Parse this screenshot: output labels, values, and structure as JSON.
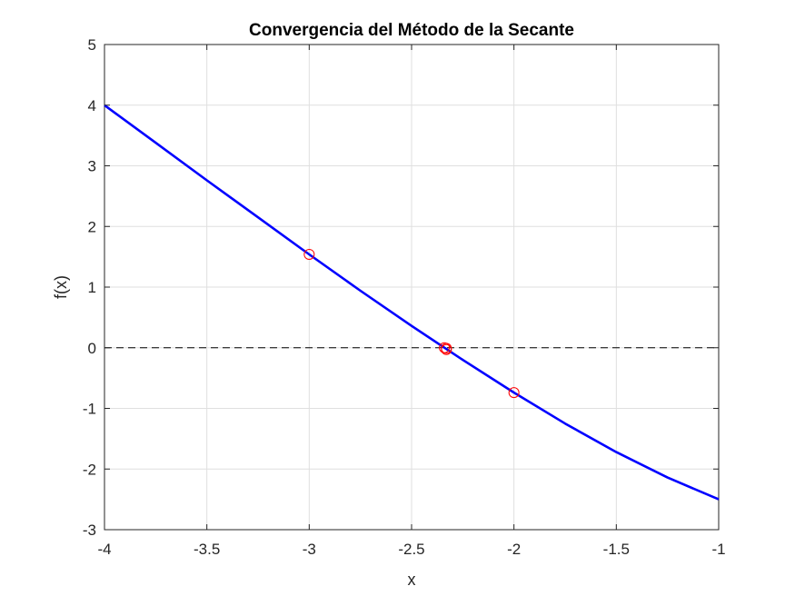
{
  "chart_data": {
    "type": "line",
    "title": "Convergencia del Método de la Secante",
    "xlabel": "x",
    "ylabel": "f(x)",
    "xlim": [
      -4,
      -1
    ],
    "ylim": [
      -3,
      5
    ],
    "grid": true,
    "xticks": [
      -4,
      -3.5,
      -3,
      -2.5,
      -2,
      -1.5,
      -1
    ],
    "yticks": [
      -3,
      -2,
      -1,
      0,
      1,
      2,
      3,
      4,
      5
    ],
    "xtick_labels": [
      "-4",
      "-3.5",
      "-3",
      "-2.5",
      "-2",
      "-1.5",
      "-1"
    ],
    "ytick_labels": [
      "-3",
      "-2",
      "-1",
      "0",
      "1",
      "2",
      "3",
      "4",
      "5"
    ],
    "series": [
      {
        "kind": "line",
        "color": "#0000ff",
        "x": [
          -4.0,
          -3.75,
          -3.5,
          -3.25,
          -3.0,
          -2.75,
          -2.5,
          -2.25,
          -2.0,
          -1.75,
          -1.5,
          -1.25,
          -1.0
        ],
        "y": [
          4.0,
          3.38,
          2.76,
          2.15,
          1.54,
          0.94,
          0.36,
          -0.2,
          -0.74,
          -1.25,
          -1.72,
          -2.14,
          -2.5
        ]
      },
      {
        "kind": "markers",
        "marker": "circle",
        "color": "#ff0000",
        "x": [
          -3.0,
          -2.0,
          -2.34,
          -2.33,
          -2.33
        ],
        "y": [
          1.54,
          -0.74,
          0.0,
          -0.03,
          -0.01
        ]
      },
      {
        "kind": "reference-line",
        "style": "dashed",
        "color": "#000000",
        "x": [
          -4,
          -1
        ],
        "y": [
          0,
          0
        ]
      }
    ]
  }
}
